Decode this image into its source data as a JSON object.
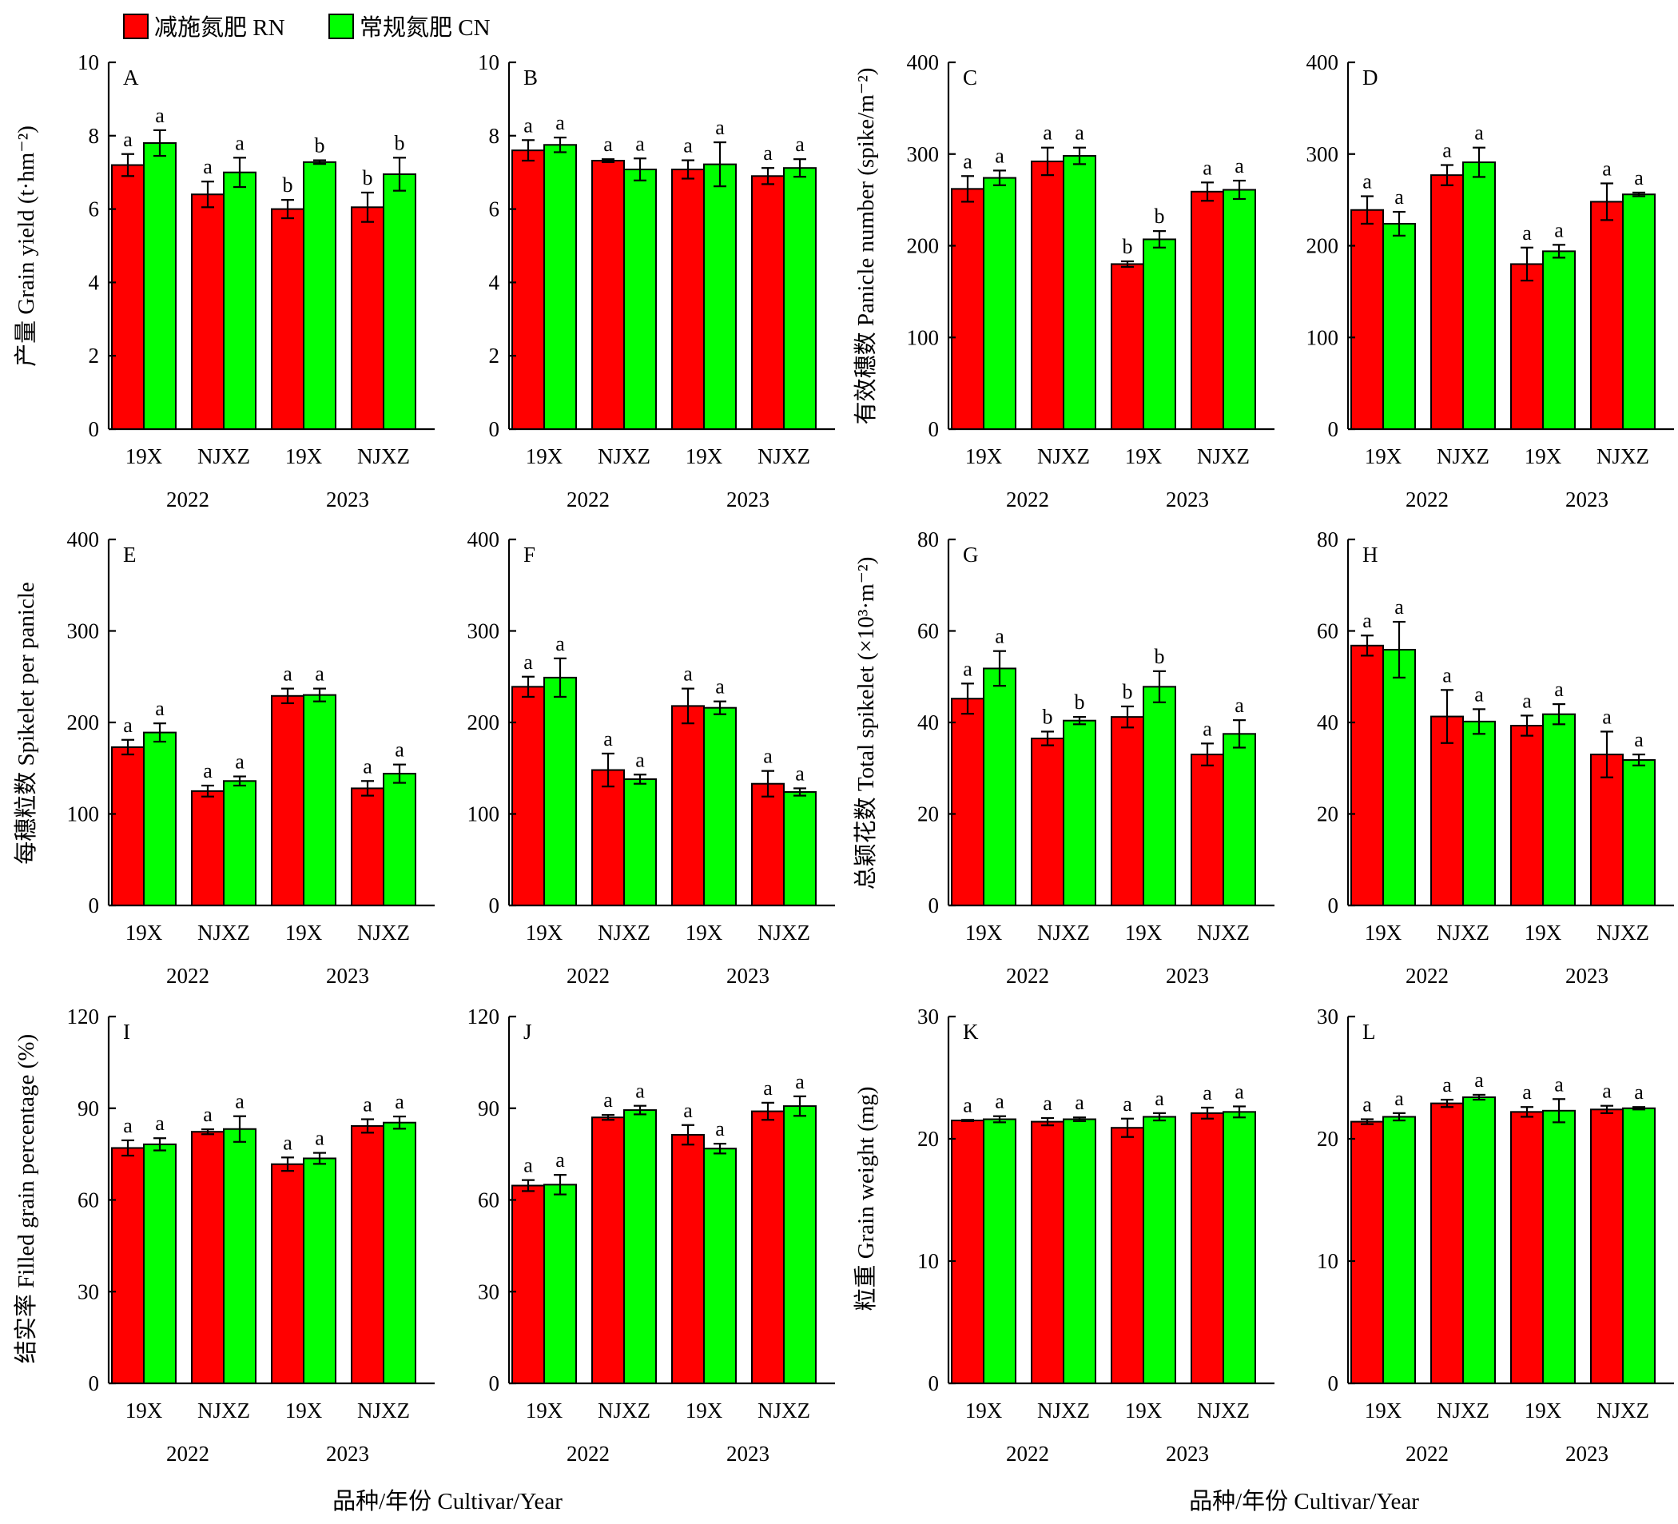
{
  "legend": [
    {
      "label": "减施氮肥 RN",
      "color": "#ff0000"
    },
    {
      "label": "常规氮肥 CN",
      "color": "#00ff00"
    }
  ],
  "x_axis_title": "品种/年份 Cultivar/Year",
  "ylabels": [
    "产量 Grain yield (t·hm⁻²)",
    "有效穗数 Panicle number (spike/m⁻²)",
    "每穗粒数 Spikelet per panicle",
    "总颖花数 Total spikelet (×10³·m⁻²)",
    "结实率 Filled grain percentage (%)",
    "粒重 Grain weight (mg)"
  ],
  "chart_data": [
    {
      "type": "bar",
      "panel": "A",
      "categories": [
        "19X",
        "NJXZ",
        "19X",
        "NJXZ"
      ],
      "years": [
        "2022",
        "2023"
      ],
      "ylim": [
        0,
        10
      ],
      "yticks": [
        0,
        2,
        4,
        6,
        8,
        10
      ],
      "series": [
        {
          "name": "减施氮肥 RN",
          "values": [
            7.2,
            6.4,
            6.0,
            6.05
          ],
          "err": [
            0.3,
            0.35,
            0.25,
            0.4
          ],
          "sig": [
            "a",
            "a",
            "b",
            "b"
          ]
        },
        {
          "name": "常规氮肥 CN",
          "values": [
            7.8,
            7.0,
            7.28,
            6.95
          ],
          "err": [
            0.35,
            0.4,
            0.05,
            0.45
          ],
          "sig": [
            "a",
            "a",
            "b",
            "b"
          ]
        }
      ]
    },
    {
      "type": "bar",
      "panel": "B",
      "categories": [
        "19X",
        "NJXZ",
        "19X",
        "NJXZ"
      ],
      "years": [
        "2022",
        "2023"
      ],
      "ylim": [
        0,
        10
      ],
      "yticks": [
        0,
        2,
        4,
        6,
        8,
        10
      ],
      "series": [
        {
          "name": "减施氮肥 RN",
          "values": [
            7.6,
            7.32,
            7.08,
            6.9
          ],
          "err": [
            0.28,
            0.04,
            0.25,
            0.22
          ],
          "sig": [
            "a",
            "a",
            "a",
            "a"
          ]
        },
        {
          "name": "常规氮肥 CN",
          "values": [
            7.75,
            7.08,
            7.22,
            7.12
          ],
          "err": [
            0.2,
            0.3,
            0.6,
            0.24
          ],
          "sig": [
            "a",
            "a",
            "a",
            "a"
          ]
        }
      ]
    },
    {
      "type": "bar",
      "panel": "C",
      "categories": [
        "19X",
        "NJXZ",
        "19X",
        "NJXZ"
      ],
      "years": [
        "2022",
        "2023"
      ],
      "ylim": [
        0,
        400
      ],
      "yticks": [
        0,
        100,
        200,
        300,
        400
      ],
      "series": [
        {
          "name": "减施氮肥 RN",
          "values": [
            262,
            292,
            180,
            259
          ],
          "err": [
            14,
            15,
            3,
            10
          ],
          "sig": [
            "a",
            "a",
            "b",
            "a"
          ]
        },
        {
          "name": "常规氮肥 CN",
          "values": [
            274,
            298,
            207,
            261
          ],
          "err": [
            8,
            9,
            9,
            10
          ],
          "sig": [
            "a",
            "a",
            "b",
            "a"
          ]
        }
      ]
    },
    {
      "type": "bar",
      "panel": "D",
      "categories": [
        "19X",
        "NJXZ",
        "19X",
        "NJXZ"
      ],
      "years": [
        "2022",
        "2023"
      ],
      "ylim": [
        0,
        400
      ],
      "yticks": [
        0,
        100,
        200,
        300,
        400
      ],
      "series": [
        {
          "name": "减施氮肥 RN",
          "values": [
            239,
            277,
            180,
            248
          ],
          "err": [
            15,
            11,
            18,
            20
          ],
          "sig": [
            "a",
            "a",
            "a",
            "a"
          ]
        },
        {
          "name": "常规氮肥 CN",
          "values": [
            224,
            291,
            194,
            256
          ],
          "err": [
            13,
            16,
            7,
            2
          ],
          "sig": [
            "a",
            "a",
            "a",
            "a"
          ]
        }
      ]
    },
    {
      "type": "bar",
      "panel": "E",
      "categories": [
        "19X",
        "NJXZ",
        "19X",
        "NJXZ"
      ],
      "years": [
        "2022",
        "2023"
      ],
      "ylim": [
        0,
        400
      ],
      "yticks": [
        0,
        100,
        200,
        300,
        400
      ],
      "series": [
        {
          "name": "减施氮肥 RN",
          "values": [
            173,
            125,
            229,
            128
          ],
          "err": [
            8,
            6,
            8,
            8
          ],
          "sig": [
            "a",
            "a",
            "a",
            "a"
          ]
        },
        {
          "name": "常规氮肥 CN",
          "values": [
            189,
            136,
            230,
            144
          ],
          "err": [
            10,
            5,
            7,
            10
          ],
          "sig": [
            "a",
            "a",
            "a",
            "a"
          ]
        }
      ]
    },
    {
      "type": "bar",
      "panel": "F",
      "categories": [
        "19X",
        "NJXZ",
        "19X",
        "NJXZ"
      ],
      "years": [
        "2022",
        "2023"
      ],
      "ylim": [
        0,
        400
      ],
      "yticks": [
        0,
        100,
        200,
        300,
        400
      ],
      "series": [
        {
          "name": "减施氮肥 RN",
          "values": [
            239,
            148,
            218,
            133
          ],
          "err": [
            11,
            18,
            19,
            14
          ],
          "sig": [
            "a",
            "a",
            "a",
            "a"
          ]
        },
        {
          "name": "常规氮肥 CN",
          "values": [
            249,
            138,
            216,
            124
          ],
          "err": [
            21,
            5,
            7,
            4
          ],
          "sig": [
            "a",
            "a",
            "a",
            "a"
          ]
        }
      ]
    },
    {
      "type": "bar",
      "panel": "G",
      "categories": [
        "19X",
        "NJXZ",
        "19X",
        "NJXZ"
      ],
      "years": [
        "2022",
        "2023"
      ],
      "ylim": [
        0,
        80
      ],
      "yticks": [
        0,
        20,
        40,
        60,
        80
      ],
      "series": [
        {
          "name": "减施氮肥 RN",
          "values": [
            45.2,
            36.5,
            41.2,
            33.0
          ],
          "err": [
            3.3,
            1.5,
            2.3,
            2.4
          ],
          "sig": [
            "a",
            "b",
            "b",
            "a"
          ]
        },
        {
          "name": "常规氮肥 CN",
          "values": [
            51.8,
            40.4,
            47.8,
            37.5
          ],
          "err": [
            3.8,
            0.8,
            3.4,
            3.0
          ],
          "sig": [
            "a",
            "b",
            "b",
            "a"
          ]
        }
      ]
    },
    {
      "type": "bar",
      "panel": "H",
      "categories": [
        "19X",
        "NJXZ",
        "19X",
        "NJXZ"
      ],
      "years": [
        "2022",
        "2023"
      ],
      "ylim": [
        0,
        80
      ],
      "yticks": [
        0,
        20,
        40,
        60,
        80
      ],
      "series": [
        {
          "name": "减施氮肥 RN",
          "values": [
            56.8,
            41.3,
            39.3,
            33.0
          ],
          "err": [
            2.2,
            5.8,
            2.2,
            5.0
          ],
          "sig": [
            "a",
            "a",
            "a",
            "a"
          ]
        },
        {
          "name": "常规氮肥 CN",
          "values": [
            55.9,
            40.2,
            41.8,
            31.8
          ],
          "err": [
            6.1,
            2.7,
            2.2,
            1.2
          ],
          "sig": [
            "a",
            "a",
            "a",
            "a"
          ]
        }
      ]
    },
    {
      "type": "bar",
      "panel": "I",
      "categories": [
        "19X",
        "NJXZ",
        "19X",
        "NJXZ"
      ],
      "years": [
        "2022",
        "2023"
      ],
      "ylim": [
        0,
        120
      ],
      "yticks": [
        0,
        30,
        60,
        90,
        120
      ],
      "series": [
        {
          "name": "减施氮肥 RN",
          "values": [
            77,
            82.3,
            71.7,
            84.2
          ],
          "err": [
            2.5,
            0.8,
            2.2,
            2.2
          ],
          "sig": [
            "a",
            "a",
            "a",
            "a"
          ]
        },
        {
          "name": "常规氮肥 CN",
          "values": [
            78.2,
            83.2,
            73.6,
            85.3
          ],
          "err": [
            2.0,
            4.2,
            1.8,
            2.0
          ],
          "sig": [
            "a",
            "a",
            "a",
            "a"
          ]
        }
      ]
    },
    {
      "type": "bar",
      "panel": "J",
      "categories": [
        "19X",
        "NJXZ",
        "19X",
        "NJXZ"
      ],
      "years": [
        "2022",
        "2023"
      ],
      "ylim": [
        0,
        120
      ],
      "yticks": [
        0,
        30,
        60,
        90,
        120
      ],
      "series": [
        {
          "name": "减施氮肥 RN",
          "values": [
            64.7,
            87.0,
            81.3,
            89.0
          ],
          "err": [
            1.8,
            0.8,
            3.2,
            2.8
          ],
          "sig": [
            "a",
            "a",
            "a",
            "a"
          ]
        },
        {
          "name": "常规氮肥 CN",
          "values": [
            65.0,
            89.4,
            76.8,
            90.7
          ],
          "err": [
            3.2,
            1.4,
            1.6,
            3.2
          ],
          "sig": [
            "a",
            "a",
            "a",
            "a"
          ]
        }
      ]
    },
    {
      "type": "bar",
      "panel": "K",
      "categories": [
        "19X",
        "NJXZ",
        "19X",
        "NJXZ"
      ],
      "years": [
        "2022",
        "2023"
      ],
      "ylim": [
        0,
        30
      ],
      "yticks": [
        0,
        10,
        20,
        30
      ],
      "series": [
        {
          "name": "减施氮肥 RN",
          "values": [
            21.5,
            21.4,
            20.9,
            22.1
          ],
          "err": [
            0.05,
            0.3,
            0.75,
            0.45
          ],
          "sig": [
            "a",
            "a",
            "a",
            "a"
          ]
        },
        {
          "name": "常规氮肥 CN",
          "values": [
            21.6,
            21.6,
            21.8,
            22.2
          ],
          "err": [
            0.25,
            0.15,
            0.3,
            0.45
          ],
          "sig": [
            "a",
            "a",
            "a",
            "a"
          ]
        }
      ]
    },
    {
      "type": "bar",
      "panel": "L",
      "categories": [
        "19X",
        "NJXZ",
        "19X",
        "NJXZ"
      ],
      "years": [
        "2022",
        "2023"
      ],
      "ylim": [
        0,
        30
      ],
      "yticks": [
        0,
        10,
        20,
        30
      ],
      "series": [
        {
          "name": "减施氮肥 RN",
          "values": [
            21.4,
            22.9,
            22.2,
            22.4
          ],
          "err": [
            0.2,
            0.3,
            0.4,
            0.3
          ],
          "sig": [
            "a",
            "a",
            "a",
            "a"
          ]
        },
        {
          "name": "常规氮肥 CN",
          "values": [
            21.8,
            23.4,
            22.3,
            22.5
          ],
          "err": [
            0.3,
            0.2,
            0.95,
            0.1
          ],
          "sig": [
            "a",
            "a",
            "a",
            "a"
          ]
        }
      ]
    }
  ]
}
